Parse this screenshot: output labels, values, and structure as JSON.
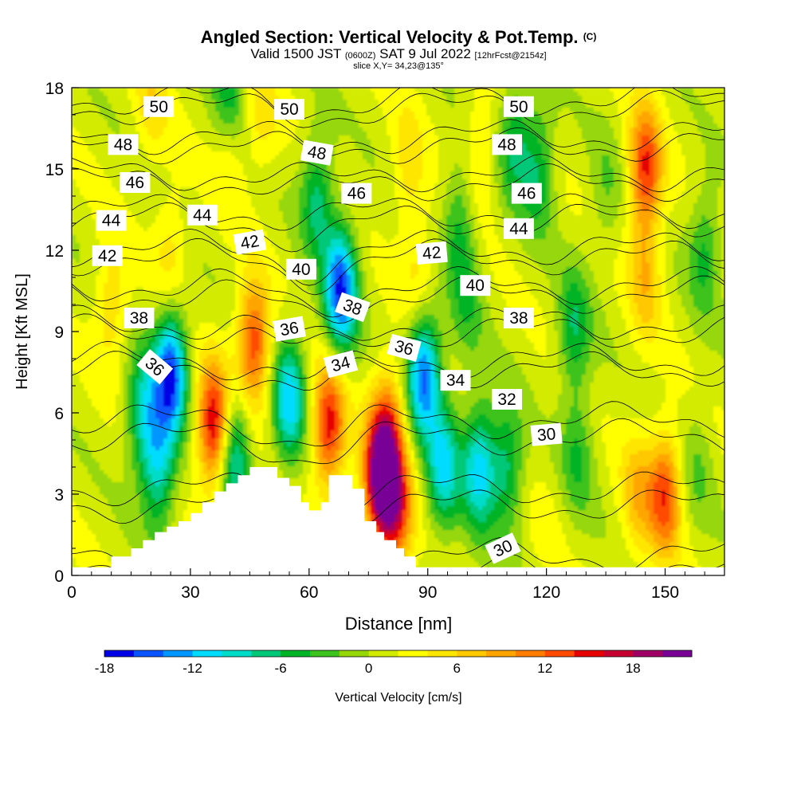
{
  "title": "Angled Section: Vertical Velocity & Pot.Temp.",
  "title_mark": "(C)",
  "subtitle": {
    "valid": "Valid 1500 JST",
    "utc": "(0600Z)",
    "date": "SAT 9 Jul 2022",
    "fcst": "[12hrFcst@2154z]"
  },
  "subsubtitle": "slice X,Y= 34,23@135°",
  "chart_data": {
    "type": "heatmap",
    "xlabel": "Distance [nm]",
    "ylabel": "Height [Kft MSL]",
    "xlim": [
      0,
      165
    ],
    "ylim": [
      0,
      18
    ],
    "xticks": [
      0,
      30,
      60,
      90,
      120,
      150
    ],
    "yticks": [
      0,
      3,
      6,
      9,
      12,
      15,
      18
    ],
    "colorbar": {
      "label": "Vertical Velocity [cm/s]",
      "ticks": [
        -18,
        -12,
        -6,
        0,
        6,
        12,
        18
      ],
      "range": [
        -18,
        22
      ],
      "colors": [
        "#0000e6",
        "#0a55ff",
        "#0096ff",
        "#00dcff",
        "#00dcc8",
        "#00c878",
        "#00b428",
        "#3cc31e",
        "#96d70a",
        "#d2eb00",
        "#ffff00",
        "#ffe600",
        "#ffc800",
        "#ffa500",
        "#ff7d00",
        "#ff4b00",
        "#e60000",
        "#c80032",
        "#a00064",
        "#780096"
      ]
    },
    "terrain": [
      [
        0,
        0.3
      ],
      [
        10,
        0.3
      ],
      [
        10,
        0.7
      ],
      [
        15,
        0.7
      ],
      [
        15,
        1
      ],
      [
        18,
        1
      ],
      [
        18,
        1.3
      ],
      [
        21,
        1.3
      ],
      [
        21,
        1.6
      ],
      [
        24,
        1.6
      ],
      [
        24,
        1.8
      ],
      [
        27,
        1.8
      ],
      [
        27,
        2
      ],
      [
        30,
        2
      ],
      [
        30,
        2.3
      ],
      [
        33,
        2.3
      ],
      [
        33,
        2.7
      ],
      [
        36,
        2.7
      ],
      [
        36,
        3.1
      ],
      [
        39,
        3.1
      ],
      [
        39,
        3.4
      ],
      [
        42,
        3.4
      ],
      [
        42,
        3.7
      ],
      [
        45,
        3.7
      ],
      [
        45,
        4
      ],
      [
        52,
        4
      ],
      [
        52,
        3.6
      ],
      [
        55,
        3.6
      ],
      [
        55,
        3.3
      ],
      [
        58,
        3.3
      ],
      [
        58,
        2.7
      ],
      [
        60,
        2.7
      ],
      [
        60,
        2.4
      ],
      [
        63,
        2.4
      ],
      [
        63,
        2.7
      ],
      [
        65,
        2.7
      ],
      [
        65,
        3.7
      ],
      [
        71,
        3.7
      ],
      [
        71,
        3.2
      ],
      [
        74,
        3.2
      ],
      [
        74,
        2
      ],
      [
        77,
        2
      ],
      [
        77,
        1.6
      ],
      [
        79,
        1.6
      ],
      [
        79,
        1.3
      ],
      [
        82,
        1.3
      ],
      [
        82,
        1
      ],
      [
        84,
        1
      ],
      [
        84,
        0.7
      ],
      [
        87,
        0.7
      ],
      [
        87,
        0.3
      ],
      [
        165,
        0.3
      ]
    ],
    "field": [
      {
        "x": 20,
        "y": 17.5,
        "v": 4
      },
      {
        "x": 40,
        "y": 16,
        "v": 4
      },
      {
        "x": 48,
        "y": 17,
        "v": 4
      },
      {
        "x": 85,
        "y": 15,
        "v": 4
      },
      {
        "x": 103,
        "y": 15.5,
        "v": 4
      },
      {
        "x": 145,
        "y": 15,
        "v": 13
      },
      {
        "x": 145,
        "y": 11,
        "v": 6
      },
      {
        "x": 10,
        "y": 10,
        "v": 5
      },
      {
        "x": 25,
        "y": 12,
        "v": 4
      },
      {
        "x": 88,
        "y": 11,
        "v": 4
      },
      {
        "x": 150,
        "y": 3,
        "v": 12
      },
      {
        "x": 143,
        "y": 3,
        "v": 6
      },
      {
        "x": 36,
        "y": 5.5,
        "v": 16
      },
      {
        "x": 46,
        "y": 8.5,
        "v": 13
      },
      {
        "x": 65,
        "y": 5.5,
        "v": 14
      },
      {
        "x": 78,
        "y": 3.5,
        "v": 20
      },
      {
        "x": 80,
        "y": 5.5,
        "v": 9
      },
      {
        "x": 82,
        "y": 2.5,
        "v": 12
      },
      {
        "x": 10,
        "y": 5,
        "v": 0
      },
      {
        "x": 25,
        "y": 7.5,
        "v": -17
      },
      {
        "x": 18,
        "y": 6,
        "v": -9
      },
      {
        "x": 22,
        "y": 4,
        "v": -10
      },
      {
        "x": 68,
        "y": 10.5,
        "v": -17
      },
      {
        "x": 89,
        "y": 7.5,
        "v": -16
      },
      {
        "x": 55,
        "y": 6.5,
        "v": -12
      },
      {
        "x": 41,
        "y": 4.5,
        "v": -11
      },
      {
        "x": 94,
        "y": 4,
        "v": -11
      },
      {
        "x": 103,
        "y": 4,
        "v": -12
      },
      {
        "x": 110,
        "y": 4,
        "v": -8
      },
      {
        "x": 118,
        "y": 15,
        "v": -7
      },
      {
        "x": 112,
        "y": 16,
        "v": -7
      },
      {
        "x": 98,
        "y": 13,
        "v": -6
      },
      {
        "x": 62,
        "y": 14,
        "v": -8
      },
      {
        "x": 40,
        "y": 18,
        "v": -8
      },
      {
        "x": 127,
        "y": 9,
        "v": -7
      },
      {
        "x": 128,
        "y": 4.5,
        "v": -5
      },
      {
        "x": 160,
        "y": 12,
        "v": -6
      },
      {
        "x": 158,
        "y": 4,
        "v": -3
      },
      {
        "x": 135,
        "y": 14,
        "v": -3
      },
      {
        "x": 100,
        "y": 10,
        "v": -4
      },
      {
        "x": 5,
        "y": 2,
        "v": 0
      },
      {
        "x": 120,
        "y": 2,
        "v": 1
      }
    ],
    "isotherms": [
      30,
      32,
      34,
      36,
      38,
      40,
      42,
      44,
      46,
      48,
      50
    ],
    "contour_labels": [
      {
        "text": "50",
        "x": 22,
        "y": 17.3,
        "rot": 0
      },
      {
        "text": "50",
        "x": 55,
        "y": 17.2,
        "rot": 0
      },
      {
        "text": "50",
        "x": 113,
        "y": 17.3,
        "rot": 0
      },
      {
        "text": "48",
        "x": 13,
        "y": 15.9,
        "rot": 0
      },
      {
        "text": "48",
        "x": 62,
        "y": 15.6,
        "rot": 10
      },
      {
        "text": "48",
        "x": 110,
        "y": 15.9,
        "rot": 0
      },
      {
        "text": "46",
        "x": 16,
        "y": 14.5,
        "rot": 0
      },
      {
        "text": "46",
        "x": 72,
        "y": 14.1,
        "rot": 0
      },
      {
        "text": "46",
        "x": 115,
        "y": 14.1,
        "rot": 0
      },
      {
        "text": "44",
        "x": 10,
        "y": 13.1,
        "rot": 0
      },
      {
        "text": "44",
        "x": 33,
        "y": 13.3,
        "rot": 0
      },
      {
        "text": "44",
        "x": 113,
        "y": 12.8,
        "rot": 0
      },
      {
        "text": "42",
        "x": 9,
        "y": 11.8,
        "rot": 0
      },
      {
        "text": "42",
        "x": 45,
        "y": 12.3,
        "rot": -10
      },
      {
        "text": "42",
        "x": 91,
        "y": 11.9,
        "rot": -5
      },
      {
        "text": "40",
        "x": 58,
        "y": 11.3,
        "rot": 0
      },
      {
        "text": "40",
        "x": 102,
        "y": 10.7,
        "rot": 0
      },
      {
        "text": "38",
        "x": 17,
        "y": 9.5,
        "rot": 0
      },
      {
        "text": "38",
        "x": 71,
        "y": 9.9,
        "rot": 20
      },
      {
        "text": "38",
        "x": 113,
        "y": 9.5,
        "rot": 0
      },
      {
        "text": "36",
        "x": 21,
        "y": 7.7,
        "rot": 40
      },
      {
        "text": "36",
        "x": 55,
        "y": 9.1,
        "rot": -10
      },
      {
        "text": "36",
        "x": 84,
        "y": 8.4,
        "rot": 15
      },
      {
        "text": "34",
        "x": 68,
        "y": 7.8,
        "rot": -15
      },
      {
        "text": "34",
        "x": 97,
        "y": 7.2,
        "rot": 0
      },
      {
        "text": "32",
        "x": 110,
        "y": 6.5,
        "rot": 0
      },
      {
        "text": "30",
        "x": 120,
        "y": 5.2,
        "rot": -5
      },
      {
        "text": "30",
        "x": 109,
        "y": 1.0,
        "rot": -25
      }
    ]
  }
}
